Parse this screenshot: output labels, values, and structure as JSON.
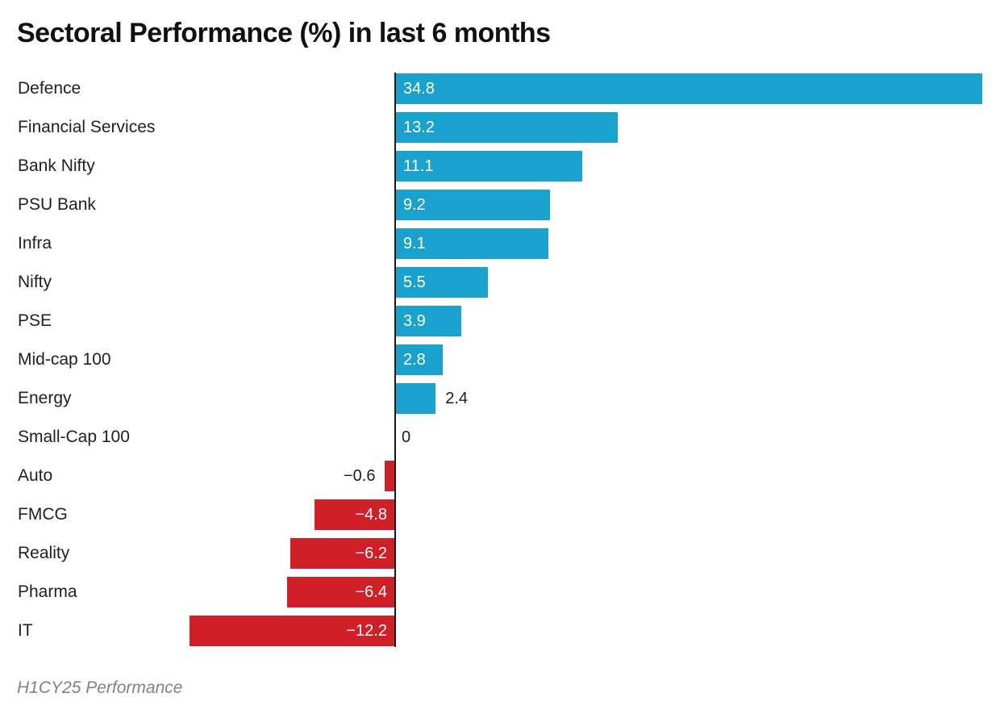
{
  "title": "Sectoral Performance (%) in last 6 months",
  "footnote": "H1CY25 Performance",
  "colors": {
    "background": "#FFFFFF",
    "positive_bar": "#1AA2CE",
    "negative_bar": "#CE2026",
    "axis_line": "#1A1A1A",
    "inside_value_label": "#FFFFFF",
    "outside_value_label": "#1C1C1C",
    "category_label": "#212121",
    "title_text": "#111111",
    "footnote_text": "#828282"
  },
  "chart_data": {
    "type": "bar",
    "orientation": "horizontal",
    "title": "Sectoral Performance (%) in last 6 months",
    "xlabel": "",
    "ylabel": "",
    "xlim": [
      -12.2,
      34.8
    ],
    "grid": false,
    "legend": "none",
    "baseline": 0,
    "categories": [
      "Defence",
      "Financial Services",
      "Bank Nifty",
      "PSU Bank",
      "Infra",
      "Nifty",
      "PSE",
      "Mid-cap 100",
      "Energy",
      "Small-Cap 100",
      "Auto",
      "FMCG",
      "Reality",
      "Pharma",
      "IT"
    ],
    "values": [
      34.8,
      13.2,
      11.1,
      9.2,
      9.1,
      5.5,
      3.9,
      2.8,
      2.4,
      0,
      -0.6,
      -4.8,
      -6.2,
      -6.4,
      -12.2
    ],
    "value_labels": [
      "34.8",
      "13.2",
      "11.1",
      "9.2",
      "9.1",
      "5.5",
      "3.9",
      "2.8",
      "2.4",
      "0",
      "−0.6",
      "−4.8",
      "−6.2",
      "−6.4",
      "−12.2"
    ],
    "annotation": "H1CY25 Performance"
  }
}
